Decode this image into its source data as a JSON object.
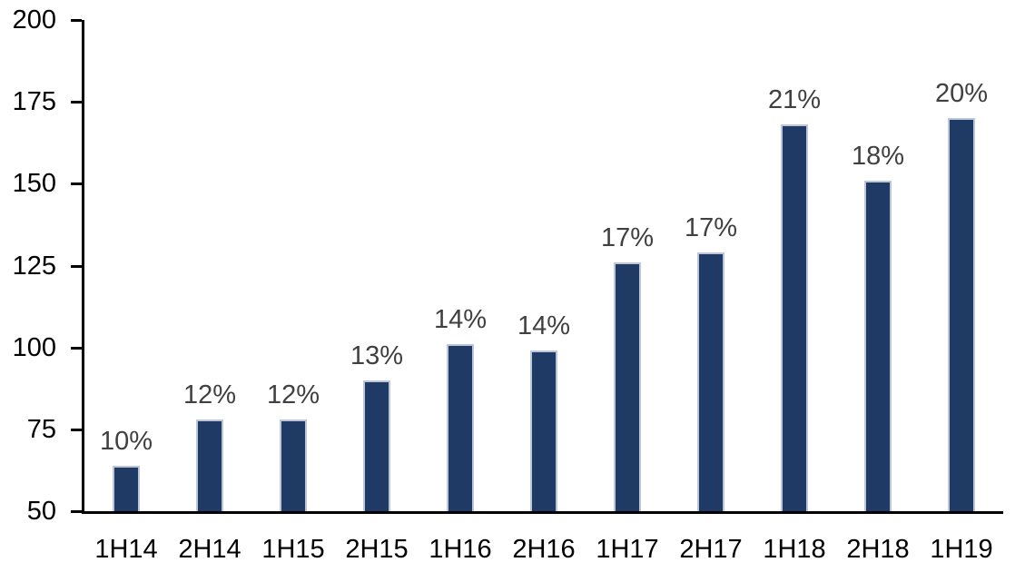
{
  "chart_data": {
    "type": "bar",
    "title": "",
    "xlabel": "",
    "ylabel": "",
    "categories": [
      "1H14",
      "2H14",
      "1H15",
      "2H15",
      "1H16",
      "2H16",
      "1H17",
      "2H17",
      "1H18",
      "2H18",
      "1H19"
    ],
    "values": [
      64,
      78,
      78,
      90,
      101,
      99,
      126,
      129,
      168,
      151,
      170
    ],
    "bar_labels": [
      "10%",
      "12%",
      "12%",
      "13%",
      "14%",
      "14%",
      "17%",
      "17%",
      "21%",
      "18%",
      "20%"
    ],
    "ylim": [
      50,
      200
    ],
    "yticks": [
      50,
      75,
      100,
      125,
      150,
      175,
      200
    ],
    "ytick_step": 25,
    "grid": false,
    "legend_position": "none",
    "colors": {
      "bar_fill": "#203A66",
      "bar_border": "#BCC6D8",
      "axis": "#000000",
      "axis_tick_label": "#000000",
      "data_label": "#404040",
      "background": "#FFFFFF"
    }
  }
}
